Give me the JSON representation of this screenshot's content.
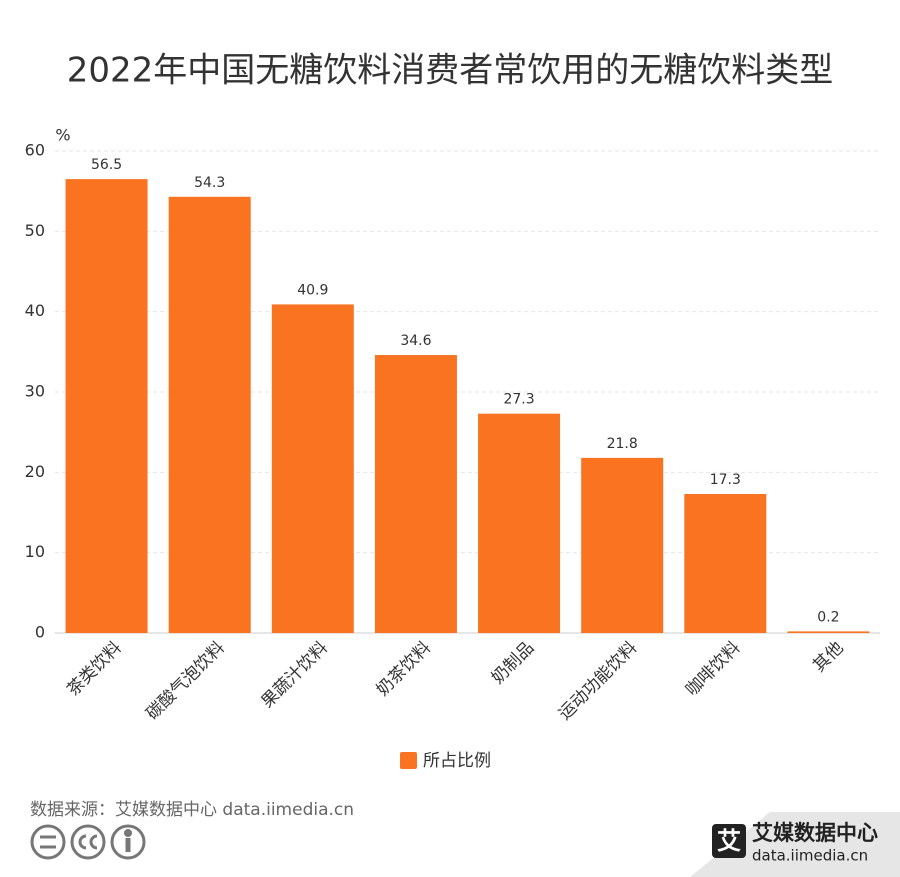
{
  "chart_data": {
    "type": "bar",
    "title": "2022年中国无糖饮料消费者常饮用的无糖饮料类型",
    "y_unit": "%",
    "categories": [
      "茶类饮料",
      "碳酸气泡饮料",
      "果蔬汁饮料",
      "奶茶饮料",
      "奶制品",
      "运动功能饮料",
      "咖啡饮料",
      "其他"
    ],
    "series": [
      {
        "name": "所占比例",
        "color": "#f97321",
        "values": [
          56.5,
          54.3,
          40.9,
          34.6,
          27.3,
          21.8,
          17.3,
          0.2
        ]
      }
    ],
    "ylim": [
      0,
      60
    ],
    "yticks": [
      0,
      10,
      20,
      30,
      40,
      50,
      60
    ],
    "grid": true,
    "legend": "bottom"
  },
  "source": "数据来源：艾媒数据中心 data.iimedia.cn",
  "footer": {
    "logo_mark": "艾",
    "brand": "艾媒数据中心",
    "url": "data.iimedia.cn"
  }
}
